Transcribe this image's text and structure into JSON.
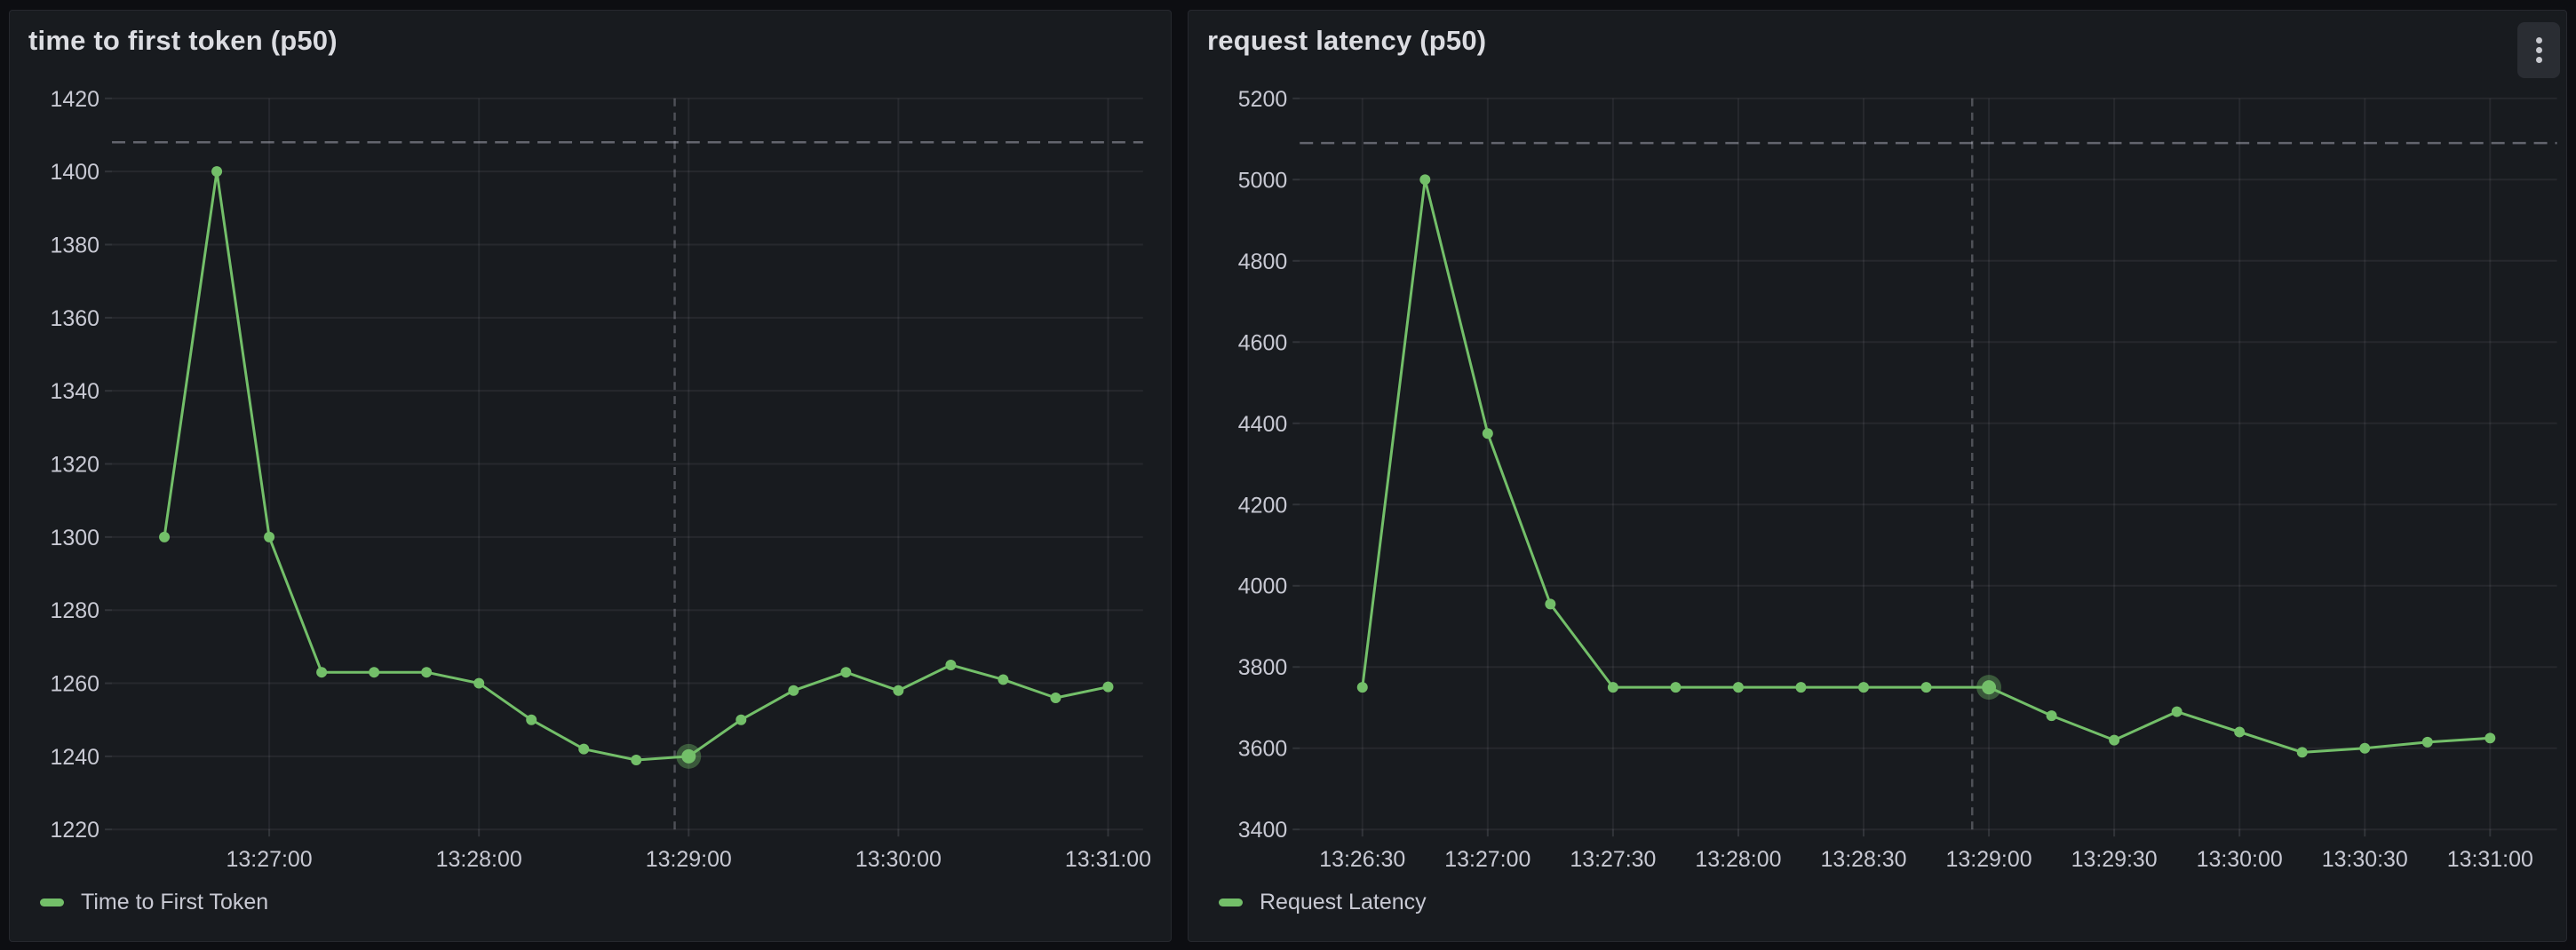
{
  "panels": [
    {
      "title": "time to first token (p50)"
    },
    {
      "title": "request latency (p50)"
    }
  ],
  "colors": {
    "series_green": "#73BF69",
    "page_background": "#0d0e12",
    "panel_background": "#181b1f",
    "panel_border": "#26282e",
    "grid_line": "rgba(204,204,220,0.08)",
    "tick_text": "#c8c9d3",
    "title_text": "#dcdde2",
    "threshold_line": "rgba(204,204,220,0.42)",
    "crosshair_line": "rgba(204,204,220,0.30)"
  },
  "chart_data": [
    {
      "type": "line",
      "title": "time to first token (p50)",
      "series": [
        {
          "name": "Time to First Token",
          "color": "#73BF69",
          "x": [
            "13:26:30",
            "13:26:45",
            "13:27:00",
            "13:27:15",
            "13:27:30",
            "13:27:45",
            "13:28:00",
            "13:28:15",
            "13:28:30",
            "13:28:45",
            "13:29:00",
            "13:29:15",
            "13:29:30",
            "13:29:45",
            "13:30:00",
            "13:30:15",
            "13:30:30",
            "13:30:45",
            "13:31:00"
          ],
          "values": [
            1300,
            1400,
            1300,
            1263,
            1263,
            1263,
            1260,
            1250,
            1242,
            1239,
            1240,
            1250,
            1258,
            1263,
            1258,
            1265,
            1261,
            1256,
            1259
          ]
        }
      ],
      "ylim": [
        1220,
        1420
      ],
      "yticks": [
        1220,
        1240,
        1260,
        1280,
        1300,
        1320,
        1340,
        1360,
        1380,
        1400,
        1420
      ],
      "xticks": [
        "13:27:00",
        "13:28:00",
        "13:29:00",
        "13:30:00",
        "13:31:00"
      ],
      "xlim": [
        "13:26:15",
        "13:31:10"
      ],
      "threshold_value": 1408,
      "crosshair_time": "13:28:56",
      "hover_point": {
        "time": "13:29:00",
        "value": 1240
      },
      "grid": true,
      "legend_position": "bottom-left"
    },
    {
      "type": "line",
      "title": "request latency (p50)",
      "series": [
        {
          "name": "Request Latency",
          "color": "#73BF69",
          "x": [
            "13:26:30",
            "13:26:45",
            "13:27:00",
            "13:27:15",
            "13:27:30",
            "13:27:45",
            "13:28:00",
            "13:28:15",
            "13:28:30",
            "13:28:45",
            "13:29:00",
            "13:29:15",
            "13:29:30",
            "13:29:45",
            "13:30:00",
            "13:30:15",
            "13:30:30",
            "13:30:45",
            "13:31:00"
          ],
          "values": [
            3750,
            5000,
            4375,
            3955,
            3750,
            3750,
            3750,
            3750,
            3750,
            3750,
            3750,
            3680,
            3620,
            3690,
            3640,
            3590,
            3600,
            3615,
            3625
          ]
        }
      ],
      "ylim": [
        3400,
        5200
      ],
      "yticks": [
        3400,
        3600,
        3800,
        4000,
        4200,
        4400,
        4600,
        4800,
        5000,
        5200
      ],
      "xticks": [
        "13:26:30",
        "13:27:00",
        "13:27:30",
        "13:28:00",
        "13:28:30",
        "13:29:00",
        "13:29:30",
        "13:30:00",
        "13:30:30",
        "13:31:00"
      ],
      "xlim": [
        "13:26:15",
        "13:31:16"
      ],
      "threshold_value": 5090,
      "crosshair_time": "13:28:56",
      "hover_point": {
        "time": "13:29:00",
        "value": 3750
      },
      "grid": true,
      "legend_position": "bottom-left"
    }
  ]
}
